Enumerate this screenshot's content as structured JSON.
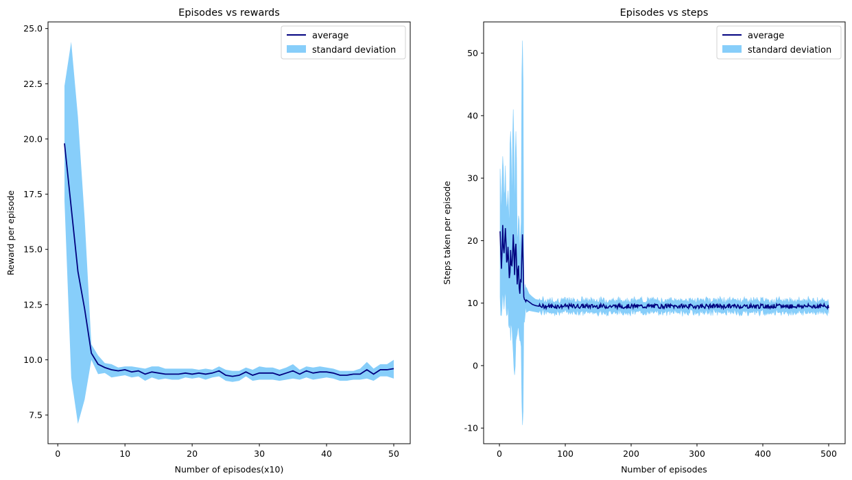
{
  "chart_data": [
    {
      "type": "line",
      "title": "Episodes vs rewards",
      "xlabel": "Number of episodes(x10)",
      "ylabel": "Reward per episode",
      "xlim": [
        -1.45,
        52.45
      ],
      "ylim": [
        6.2,
        25.3
      ],
      "x_ticks": [
        0,
        10,
        20,
        30,
        40,
        50
      ],
      "y_ticks": [
        7.5,
        10.0,
        12.5,
        15.0,
        17.5,
        20.0,
        22.5,
        25.0
      ],
      "y_tick_labels": [
        "7.5",
        "10.0",
        "12.5",
        "15.0",
        "17.5",
        "20.0",
        "22.5",
        "25.0"
      ],
      "grid": false,
      "legend": "top-right",
      "legend_entries": [
        "average",
        "standard deviation"
      ],
      "colors": {
        "average": "#00007f",
        "standard_deviation": "#87cefa"
      },
      "x": [
        1,
        2,
        3,
        4,
        5,
        6,
        7,
        8,
        9,
        10,
        11,
        12,
        13,
        14,
        15,
        16,
        17,
        18,
        19,
        20,
        21,
        22,
        23,
        24,
        25,
        26,
        27,
        28,
        29,
        30,
        31,
        32,
        33,
        34,
        35,
        36,
        37,
        38,
        39,
        40,
        41,
        42,
        43,
        44,
        45,
        46,
        47,
        48,
        49,
        50
      ],
      "series": [
        {
          "name": "average",
          "values": [
            19.8,
            16.9,
            14.0,
            12.3,
            10.3,
            9.8,
            9.65,
            9.55,
            9.5,
            9.55,
            9.45,
            9.5,
            9.35,
            9.45,
            9.4,
            9.35,
            9.35,
            9.35,
            9.4,
            9.35,
            9.4,
            9.35,
            9.4,
            9.5,
            9.3,
            9.25,
            9.3,
            9.45,
            9.3,
            9.4,
            9.4,
            9.4,
            9.3,
            9.4,
            9.5,
            9.35,
            9.5,
            9.4,
            9.45,
            9.45,
            9.4,
            9.3,
            9.3,
            9.35,
            9.35,
            9.55,
            9.35,
            9.55,
            9.55,
            9.6
          ]
        },
        {
          "name": "standard deviation",
          "upper": [
            22.4,
            24.4,
            21.0,
            16.4,
            10.7,
            10.2,
            9.85,
            9.8,
            9.65,
            9.7,
            9.7,
            9.65,
            9.6,
            9.7,
            9.7,
            9.6,
            9.6,
            9.6,
            9.6,
            9.6,
            9.55,
            9.6,
            9.55,
            9.7,
            9.55,
            9.5,
            9.5,
            9.65,
            9.55,
            9.7,
            9.65,
            9.65,
            9.55,
            9.65,
            9.8,
            9.55,
            9.7,
            9.65,
            9.7,
            9.65,
            9.6,
            9.5,
            9.5,
            9.5,
            9.6,
            9.9,
            9.6,
            9.8,
            9.8,
            10.0
          ],
          "lower": [
            17.2,
            9.2,
            7.1,
            8.2,
            10.0,
            9.35,
            9.4,
            9.2,
            9.25,
            9.3,
            9.2,
            9.25,
            9.05,
            9.2,
            9.1,
            9.15,
            9.1,
            9.1,
            9.2,
            9.15,
            9.2,
            9.1,
            9.2,
            9.25,
            9.05,
            9.0,
            9.05,
            9.25,
            9.05,
            9.1,
            9.1,
            9.1,
            9.05,
            9.1,
            9.15,
            9.1,
            9.2,
            9.1,
            9.15,
            9.2,
            9.15,
            9.05,
            9.05,
            9.1,
            9.1,
            9.15,
            9.05,
            9.25,
            9.25,
            9.15
          ]
        }
      ]
    },
    {
      "type": "line",
      "title": "Episodes vs steps",
      "xlabel": "Number of episodes",
      "ylabel": "Steps taken per episode",
      "xlim": [
        -24.0,
        525.0
      ],
      "ylim": [
        -12.5,
        55.0
      ],
      "x_ticks": [
        0,
        100,
        200,
        300,
        400,
        500
      ],
      "y_ticks": [
        -10,
        0,
        10,
        20,
        30,
        40,
        50
      ],
      "grid": false,
      "legend": "top-right",
      "legend_entries": [
        "average",
        "standard deviation"
      ],
      "colors": {
        "average": "#00007f",
        "standard_deviation": "#87cefa"
      },
      "key_points": {
        "x": [
          1,
          3,
          5,
          7,
          9,
          11,
          13,
          15,
          17,
          19,
          21,
          23,
          25,
          27,
          29,
          31,
          33,
          35,
          37,
          39,
          41,
          45,
          50,
          55,
          60
        ],
        "average": [
          21.5,
          15.5,
          22.5,
          18.0,
          22.0,
          16.5,
          19.0,
          14.0,
          18.5,
          16.0,
          21.0,
          14.5,
          19.5,
          13.0,
          16.0,
          11.5,
          13.5,
          21.0,
          11.0,
          10.5,
          10.5,
          10.2,
          9.8,
          9.6,
          9.5
        ],
        "upper": [
          31.5,
          24.0,
          33.5,
          27.0,
          32.0,
          25.0,
          28.0,
          22.0,
          37.5,
          26.0,
          41.0,
          24.0,
          37.5,
          20.0,
          24.0,
          18.0,
          23.0,
          52.0,
          14.0,
          13.0,
          12.5,
          11.5,
          11.0,
          10.6,
          10.5
        ],
        "lower": [
          11.0,
          8.0,
          12.0,
          9.0,
          12.0,
          8.0,
          10.0,
          6.0,
          4.0,
          6.0,
          2.0,
          -1.5,
          4.0,
          5.0,
          6.0,
          4.0,
          3.0,
          -9.5,
          7.0,
          8.0,
          8.5,
          8.8,
          8.7,
          8.6,
          8.5
        ]
      },
      "steady_state": {
        "x_start": 60,
        "x_end": 500,
        "mean": 9.5,
        "band_half_width": 1.0
      },
      "n_episodes": 500
    }
  ]
}
